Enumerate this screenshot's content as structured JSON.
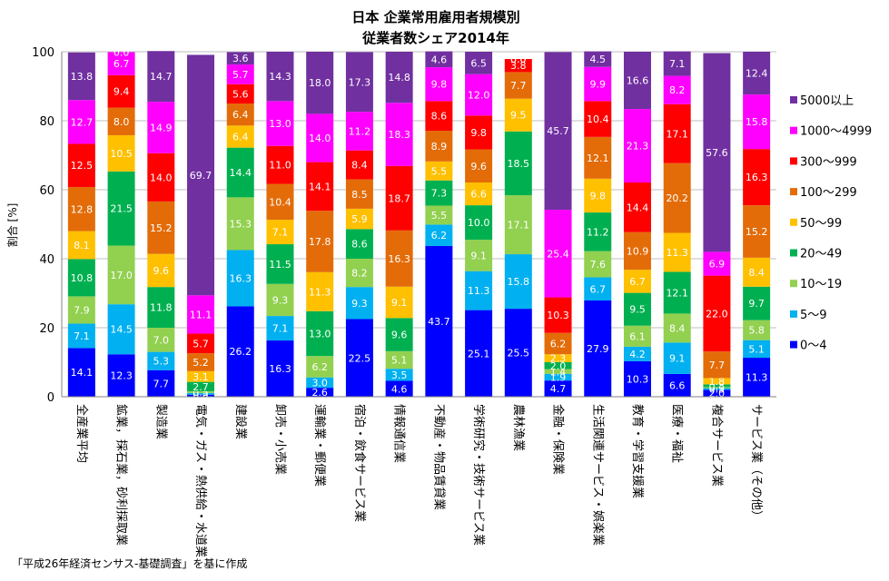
{
  "chart_data": {
    "type": "bar",
    "stacked": true,
    "title_line1": "日本 企業常用雇用者規模別",
    "title_line2": "従業者数シェア2014年",
    "ylabel": "割合 [%]",
    "ylim": [
      0,
      100
    ],
    "yticks": [
      "0",
      "20",
      "40",
      "60",
      "80",
      "100"
    ],
    "grid": true,
    "legend_position": "right",
    "categories": [
      "全産業平均",
      "鉱業，採石業，砂利採取業",
      "製造業",
      "電気・ガス・熱供給・水道業",
      "建設業",
      "卸売・小売業",
      "運輸業・郵便業",
      "宿泊・飲食サービス業",
      "情報通信業",
      "不動産・物品賃貸業",
      "学術研究・技術サービス業",
      "農林漁業",
      "金融・保険業",
      "生活関連サービス・娯楽業",
      "教育・学習支援業",
      "医療・福祉",
      "複合サービス業",
      "サービス業（その他）"
    ],
    "series": [
      {
        "name": "0〜4",
        "color": "#0000ff",
        "values": [
          14.1,
          12.3,
          7.7,
          0.6,
          26.2,
          16.3,
          2.6,
          22.5,
          4.6,
          43.7,
          25.1,
          25.5,
          4.7,
          27.9,
          10.3,
          6.6,
          2.0,
          11.3
        ]
      },
      {
        "name": "5〜9",
        "color": "#00b0f0",
        "values": [
          7.1,
          14.5,
          5.3,
          0.5,
          16.3,
          7.1,
          3.0,
          9.3,
          3.5,
          6.2,
          11.3,
          15.8,
          1.9,
          6.7,
          4.2,
          9.1,
          0.5,
          5.1
        ]
      },
      {
        "name": "10〜19",
        "color": "#92d050",
        "values": [
          7.9,
          17.0,
          7.0,
          0.5,
          15.3,
          9.3,
          6.2,
          8.2,
          5.1,
          5.5,
          9.1,
          17.1,
          1.4,
          7.6,
          6.1,
          8.4,
          0.3,
          5.8
        ]
      },
      {
        "name": "20〜49",
        "color": "#00b050",
        "values": [
          10.8,
          21.5,
          11.8,
          2.7,
          14.4,
          11.5,
          13.0,
          8.6,
          9.6,
          7.3,
          10.0,
          18.5,
          2.0,
          11.2,
          9.5,
          12.1,
          0.8,
          9.7
        ]
      },
      {
        "name": "50〜99",
        "color": "#ffc000",
        "values": [
          8.1,
          10.5,
          9.6,
          3.1,
          6.4,
          7.1,
          11.3,
          5.9,
          9.1,
          5.5,
          6.6,
          9.5,
          2.3,
          9.8,
          6.7,
          11.3,
          1.8,
          8.4
        ]
      },
      {
        "name": "100〜299",
        "color": "#e36c09",
        "values": [
          12.8,
          8.0,
          15.2,
          5.2,
          6.4,
          10.4,
          17.8,
          8.5,
          16.3,
          8.9,
          9.6,
          7.7,
          6.2,
          12.1,
          10.9,
          20.2,
          7.7,
          15.2
        ]
      },
      {
        "name": "300〜999",
        "color": "#ff0000",
        "values": [
          12.5,
          9.4,
          14.0,
          5.7,
          5.6,
          11.0,
          14.1,
          8.4,
          18.7,
          8.6,
          9.8,
          3.8,
          10.3,
          10.4,
          14.4,
          17.1,
          22.0,
          16.3
        ]
      },
      {
        "name": "1000〜4999",
        "color": "#ff00ff",
        "values": [
          12.7,
          6.7,
          14.9,
          11.1,
          5.7,
          13.0,
          14.0,
          11.2,
          18.3,
          9.8,
          12.0,
          0.0,
          25.4,
          9.9,
          21.3,
          8.2,
          6.9,
          15.8
        ]
      },
      {
        "name": "5000以上",
        "color": "#7030a0",
        "values": [
          13.8,
          0.0,
          14.7,
          69.7,
          3.6,
          14.3,
          18.0,
          17.3,
          14.8,
          4.6,
          6.5,
          0.0,
          45.7,
          4.5,
          16.6,
          7.1,
          57.6,
          12.4
        ]
      }
    ],
    "source_note": "「平成26年経済センサス-基礎調査」を基に作成"
  }
}
